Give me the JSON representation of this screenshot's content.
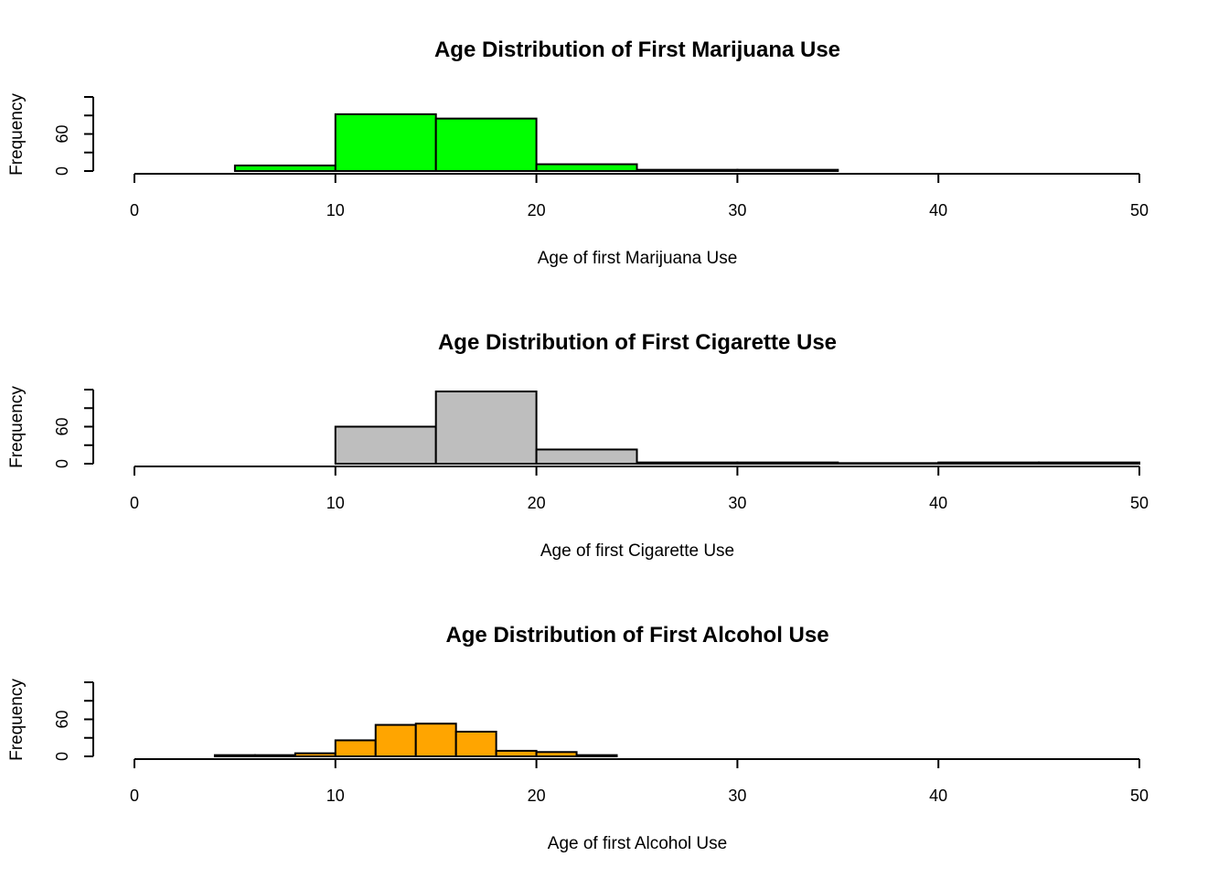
{
  "chart_data": [
    {
      "type": "bar",
      "title": "Age Distribution of First Marijuana Use",
      "xlabel": "Age of first Marijuana Use",
      "ylabel": "Frequency",
      "xlim": [
        0,
        50
      ],
      "ylim": [
        0,
        120
      ],
      "xticks": [
        "0",
        "10",
        "20",
        "30",
        "40",
        "50"
      ],
      "yticks": [
        "0",
        "60"
      ],
      "bar_color": "#00ff00",
      "bins": [
        [
          5,
          10
        ],
        [
          10,
          15
        ],
        [
          15,
          20
        ],
        [
          20,
          25
        ],
        [
          25,
          30
        ],
        [
          30,
          35
        ]
      ],
      "values": [
        9,
        92,
        85,
        11,
        2,
        2
      ]
    },
    {
      "type": "bar",
      "title": "Age Distribution of First Cigarette Use",
      "xlabel": "Age of first Cigarette Use",
      "ylabel": "Frequency",
      "xlim": [
        0,
        50
      ],
      "ylim": [
        0,
        120
      ],
      "xticks": [
        "0",
        "10",
        "20",
        "30",
        "40",
        "50"
      ],
      "yticks": [
        "0",
        "60"
      ],
      "bar_color": "#bebebe",
      "bins": [
        [
          10,
          15
        ],
        [
          15,
          20
        ],
        [
          20,
          25
        ],
        [
          25,
          30
        ],
        [
          30,
          35
        ],
        [
          35,
          40
        ],
        [
          40,
          45
        ],
        [
          45,
          50
        ]
      ],
      "values": [
        60,
        117,
        23,
        2,
        2,
        1,
        2,
        2
      ]
    },
    {
      "type": "bar",
      "title": "Age Distribution of First Alcohol Use",
      "xlabel": "Age of first Alcohol Use",
      "ylabel": "Frequency",
      "xlim": [
        0,
        50
      ],
      "ylim": [
        0,
        120
      ],
      "xticks": [
        "0",
        "10",
        "20",
        "30",
        "40",
        "50"
      ],
      "yticks": [
        "0",
        "60"
      ],
      "bar_color": "#ffa500",
      "bins": [
        [
          4,
          6
        ],
        [
          6,
          8
        ],
        [
          8,
          10
        ],
        [
          10,
          12
        ],
        [
          12,
          14
        ],
        [
          14,
          16
        ],
        [
          16,
          18
        ],
        [
          18,
          20
        ],
        [
          20,
          22
        ],
        [
          22,
          24
        ]
      ],
      "values": [
        2,
        2,
        5,
        26,
        51,
        53,
        40,
        9,
        7,
        2
      ]
    }
  ]
}
